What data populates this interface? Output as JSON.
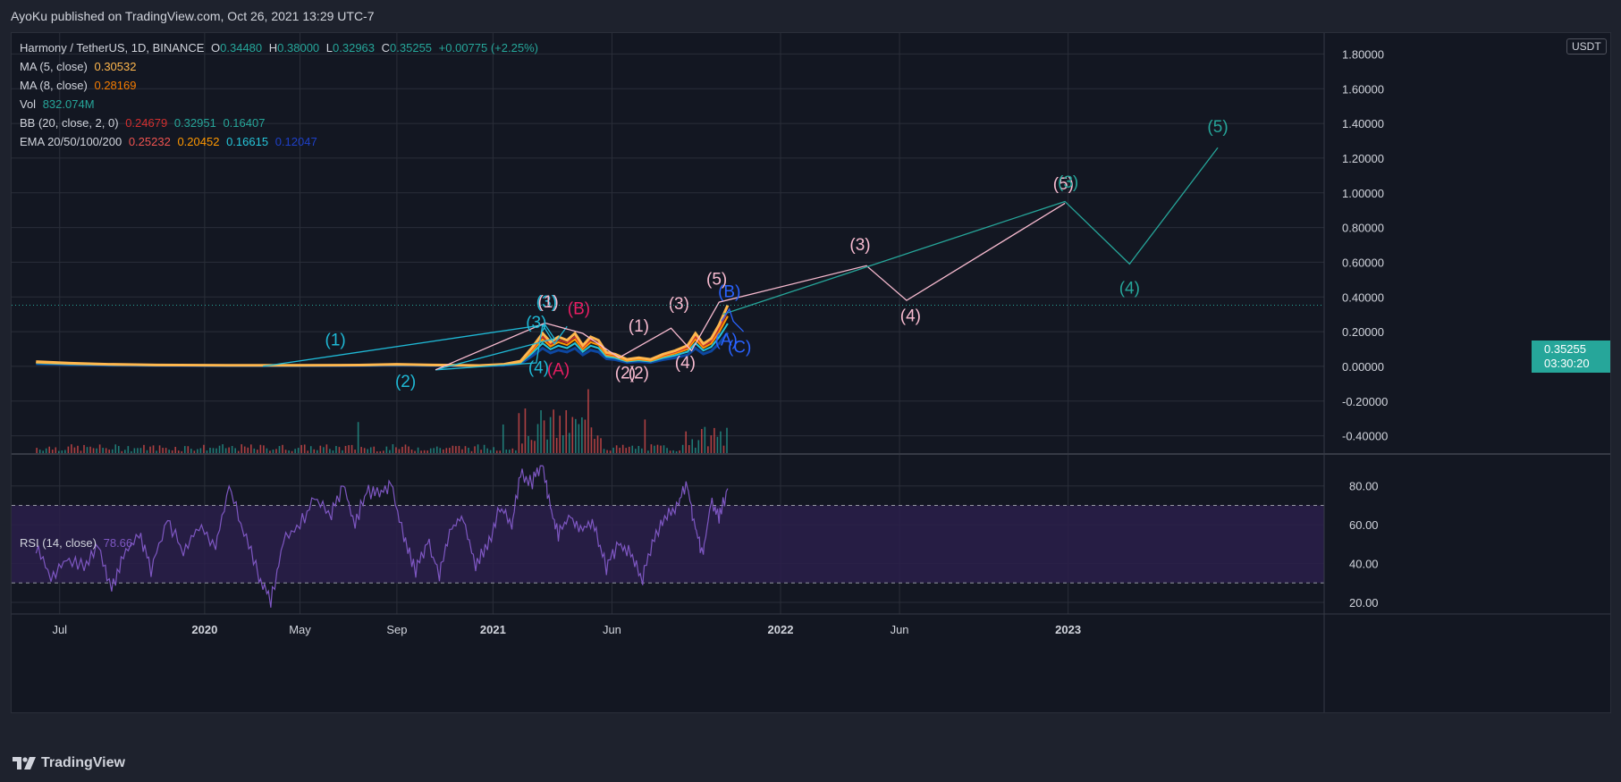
{
  "header": {
    "publisher_text": "AyoKu published on TradingView.com, Oct 26, 2021 13:29 UTC-7"
  },
  "footer": {
    "brand": "TradingView"
  },
  "colors": {
    "background": "#131722",
    "grid": "#2a2e39",
    "text": "#d1d4dc",
    "up": "#26a69a",
    "down": "#ef5350",
    "ma5": "#ffb74d",
    "ma8": "#f57c00",
    "vol": "#26a69a",
    "bb_basis": "#d32f2f",
    "bb_upper": "#26a69a",
    "bb_lower": "#26a69a",
    "ema20": "#ef5350",
    "ema50": "#ff9800",
    "ema100": "#26c6da",
    "ema200": "#0d47a1",
    "rsi": "#7e57c2",
    "rsi_band": "#2a1f4a",
    "wave_cyan": "#1fb9d6",
    "wave_pink": "#f8bbd0",
    "wave_magenta": "#e91e63",
    "wave_blue": "#2962ff",
    "wave_teal": "#26a69a"
  },
  "legend": {
    "symbol": "Harmony / TetherUS, 1D, BINANCE",
    "o_label": "O",
    "o": "0.34480",
    "h_label": "H",
    "h": "0.38000",
    "l_label": "L",
    "l": "0.32963",
    "c_label": "C",
    "c": "0.35255",
    "change": "+0.00775 (+2.25%)",
    "ma5_label": "MA (5, close)",
    "ma5": "0.30532",
    "ma8_label": "MA (8, close)",
    "ma8": "0.28169",
    "vol_label": "Vol",
    "vol": "832.074M",
    "bb_label": "BB (20, close, 2, 0)",
    "bb_basis": "0.24679",
    "bb_upper": "0.32951",
    "bb_lower": "0.16407",
    "ema_label": "EMA 20/50/100/200",
    "ema20": "0.25232",
    "ema50": "0.20452",
    "ema100": "0.16615",
    "ema200": "0.12047"
  },
  "price_badge": {
    "price": "0.35255",
    "countdown": "03:30:20"
  },
  "currency": "USDT",
  "rsi_legend": {
    "label": "RSI (14, close)",
    "value": "78.66"
  },
  "chart_data": {
    "type": "line",
    "title": "Harmony / TetherUS, 1D, BINANCE",
    "x_ticks": [
      "Jul",
      "2020",
      "May",
      "Sep",
      "2021",
      "Jun",
      "2022",
      "Jun",
      "2023"
    ],
    "y_ticks": [
      "1.80000",
      "1.60000",
      "1.40000",
      "1.20000",
      "1.00000",
      "0.80000",
      "0.60000",
      "0.40000",
      "0.20000",
      "0.00000",
      "-0.20000",
      "-0.40000"
    ],
    "ylim": [
      -0.5,
      1.9
    ],
    "rsi_ticks": [
      "80.00",
      "60.00",
      "40.00",
      "20.00"
    ],
    "rsi_ylim": [
      14,
      96
    ],
    "rsi_band": [
      30,
      70
    ],
    "price_series": [
      [
        "2019-06-01",
        0.027
      ],
      [
        "2019-07-15",
        0.018
      ],
      [
        "2019-09-01",
        0.012
      ],
      [
        "2019-11-01",
        0.008
      ],
      [
        "2020-02-01",
        0.006
      ],
      [
        "2020-05-01",
        0.006
      ],
      [
        "2020-07-15",
        0.007
      ],
      [
        "2020-09-01",
        0.012
      ],
      [
        "2020-10-15",
        0.008
      ],
      [
        "2020-12-15",
        0.005
      ],
      [
        "2021-01-15",
        0.012
      ],
      [
        "2021-02-05",
        0.03
      ],
      [
        "2021-02-20",
        0.11
      ],
      [
        "2021-03-05",
        0.19
      ],
      [
        "2021-03-15",
        0.14
      ],
      [
        "2021-03-25",
        0.17
      ],
      [
        "2021-04-05",
        0.15
      ],
      [
        "2021-04-15",
        0.19
      ],
      [
        "2021-04-25",
        0.12
      ],
      [
        "2021-05-05",
        0.17
      ],
      [
        "2021-05-15",
        0.15
      ],
      [
        "2021-05-25",
        0.08
      ],
      [
        "2021-06-05",
        0.07
      ],
      [
        "2021-06-20",
        0.04
      ],
      [
        "2021-07-05",
        0.05
      ],
      [
        "2021-07-20",
        0.04
      ],
      [
        "2021-08-05",
        0.07
      ],
      [
        "2021-08-20",
        0.09
      ],
      [
        "2021-09-05",
        0.12
      ],
      [
        "2021-09-15",
        0.19
      ],
      [
        "2021-09-25",
        0.13
      ],
      [
        "2021-10-05",
        0.16
      ],
      [
        "2021-10-15",
        0.24
      ],
      [
        "2021-10-26",
        0.35255
      ]
    ],
    "waves": [
      {
        "color": "wave_cyan",
        "points": [
          [
            "2020-03-15",
            0.0
          ],
          [
            "2021-03-08",
            0.24
          ],
          [
            "2021-03-20",
            0.16
          ],
          [
            "2020-10-20",
            -0.02
          ],
          [
            "2021-02-25",
            0.02
          ],
          [
            "2021-03-05",
            0.24
          ],
          [
            "2021-03-20",
            0.13
          ],
          [
            "2021-04-05",
            0.23
          ]
        ]
      },
      {
        "color": "wave_pink",
        "points": [
          [
            "2020-10-20",
            -0.02
          ],
          [
            "2021-03-08",
            0.25
          ],
          [
            "2021-04-25",
            0.19
          ],
          [
            "2021-06-10",
            0.05
          ],
          [
            "2021-08-15",
            0.22
          ],
          [
            "2021-09-10",
            0.09
          ],
          [
            "2021-10-15",
            0.37
          ],
          [
            "2022-04-20",
            0.58
          ],
          [
            "2022-06-10",
            0.38
          ],
          [
            "2022-12-28",
            0.94
          ]
        ]
      },
      {
        "color": "wave_teal",
        "points": [
          [
            "2021-10-20",
            0.3
          ],
          [
            "2022-12-28",
            0.95
          ],
          [
            "2023-03-20",
            0.59
          ],
          [
            "2023-07-10",
            1.26
          ]
        ]
      },
      {
        "color": "wave_blue",
        "points": [
          [
            "2021-10-18",
            0.26
          ],
          [
            "2021-10-28",
            0.33
          ],
          [
            "2021-11-02",
            0.26
          ],
          [
            "2021-11-15",
            0.2
          ]
        ]
      }
    ],
    "wave_labels": [
      {
        "text": "(1)",
        "date": "2020-06-15",
        "y": 0.12,
        "color": "wave_cyan"
      },
      {
        "text": "(2)",
        "date": "2020-09-12",
        "y": -0.12,
        "color": "wave_cyan"
      },
      {
        "text": "(3)",
        "date": "2021-02-25",
        "y": 0.22,
        "color": "wave_cyan"
      },
      {
        "text": "(4)",
        "date": "2021-02-28",
        "y": -0.04,
        "color": "wave_cyan"
      },
      {
        "text": "(3)",
        "date": "2021-03-10",
        "y": 0.34,
        "color": "wave_cyan"
      },
      {
        "text": "(1)",
        "date": "2021-03-12",
        "y": 0.34,
        "color": "wave_pink"
      },
      {
        "text": "(A)",
        "date": "2021-03-25",
        "y": -0.05,
        "color": "wave_magenta"
      },
      {
        "text": "(B)",
        "date": "2021-04-20",
        "y": 0.3,
        "color": "wave_magenta"
      },
      {
        "text": "(1)",
        "date": "2021-07-05",
        "y": 0.2,
        "color": "wave_pink"
      },
      {
        "text": "(2)",
        "date": "2021-06-18",
        "y": -0.07,
        "color": "wave_pink"
      },
      {
        "text": "(2)",
        "date": "2021-07-05",
        "y": -0.07,
        "color": "wave_pink"
      },
      {
        "text": "(3)",
        "date": "2021-08-25",
        "y": 0.33,
        "color": "wave_pink"
      },
      {
        "text": "(4)",
        "date": "2021-09-02",
        "y": -0.01,
        "color": "wave_pink"
      },
      {
        "text": "(5)",
        "date": "2021-10-12",
        "y": 0.47,
        "color": "wave_pink"
      },
      {
        "text": "(B)",
        "date": "2021-10-28",
        "y": 0.4,
        "color": "wave_blue"
      },
      {
        "text": "(A)",
        "date": "2021-10-24",
        "y": 0.12,
        "color": "wave_blue"
      },
      {
        "text": "(C)",
        "date": "2021-11-10",
        "y": 0.08,
        "color": "wave_blue"
      },
      {
        "text": "(3)",
        "date": "2022-04-12",
        "y": 0.67,
        "color": "wave_pink"
      },
      {
        "text": "(4)",
        "date": "2022-06-15",
        "y": 0.26,
        "color": "wave_pink"
      },
      {
        "text": "(5)",
        "date": "2022-12-26",
        "y": 1.02,
        "color": "wave_pink"
      },
      {
        "text": "(3)",
        "date": "2023-01-01",
        "y": 1.03,
        "color": "wave_teal"
      },
      {
        "text": "(4)",
        "date": "2023-03-20",
        "y": 0.42,
        "color": "wave_teal"
      },
      {
        "text": "(5)",
        "date": "2023-07-10",
        "y": 1.35,
        "color": "wave_teal"
      }
    ],
    "rsi_series": [
      [
        "2019-06-01",
        48
      ],
      [
        "2019-06-20",
        33
      ],
      [
        "2019-07-10",
        42
      ],
      [
        "2019-08-01",
        39
      ],
      [
        "2019-08-20",
        50
      ],
      [
        "2019-09-05",
        26
      ],
      [
        "2019-09-20",
        45
      ],
      [
        "2019-10-10",
        55
      ],
      [
        "2019-10-25",
        37
      ],
      [
        "2019-11-15",
        64
      ],
      [
        "2019-12-05",
        45
      ],
      [
        "2019-12-25",
        60
      ],
      [
        "2020-01-15",
        48
      ],
      [
        "2020-02-01",
        80
      ],
      [
        "2020-02-20",
        56
      ],
      [
        "2020-03-10",
        34
      ],
      [
        "2020-03-25",
        20
      ],
      [
        "2020-04-10",
        51
      ],
      [
        "2020-05-01",
        60
      ],
      [
        "2020-05-20",
        74
      ],
      [
        "2020-06-10",
        65
      ],
      [
        "2020-06-25",
        80
      ],
      [
        "2020-07-10",
        61
      ],
      [
        "2020-07-25",
        77
      ],
      [
        "2020-08-10",
        76
      ],
      [
        "2020-08-25",
        81
      ],
      [
        "2020-09-10",
        53
      ],
      [
        "2020-09-25",
        36
      ],
      [
        "2020-10-10",
        52
      ],
      [
        "2020-10-25",
        34
      ],
      [
        "2020-11-10",
        58
      ],
      [
        "2020-11-25",
        64
      ],
      [
        "2020-12-10",
        40
      ],
      [
        "2020-12-25",
        48
      ],
      [
        "2021-01-10",
        70
      ],
      [
        "2021-01-25",
        58
      ],
      [
        "2021-02-05",
        86
      ],
      [
        "2021-02-20",
        82
      ],
      [
        "2021-03-05",
        91
      ],
      [
        "2021-03-15",
        70
      ],
      [
        "2021-03-25",
        55
      ],
      [
        "2021-04-10",
        64
      ],
      [
        "2021-04-25",
        58
      ],
      [
        "2021-05-10",
        60
      ],
      [
        "2021-05-25",
        38
      ],
      [
        "2021-06-10",
        50
      ],
      [
        "2021-06-25",
        46
      ],
      [
        "2021-07-10",
        32
      ],
      [
        "2021-07-25",
        55
      ],
      [
        "2021-08-10",
        64
      ],
      [
        "2021-08-25",
        72
      ],
      [
        "2021-09-05",
        81
      ],
      [
        "2021-09-15",
        58
      ],
      [
        "2021-09-25",
        45
      ],
      [
        "2021-10-05",
        72
      ],
      [
        "2021-10-15",
        63
      ],
      [
        "2021-10-26",
        78.66
      ]
    ]
  }
}
